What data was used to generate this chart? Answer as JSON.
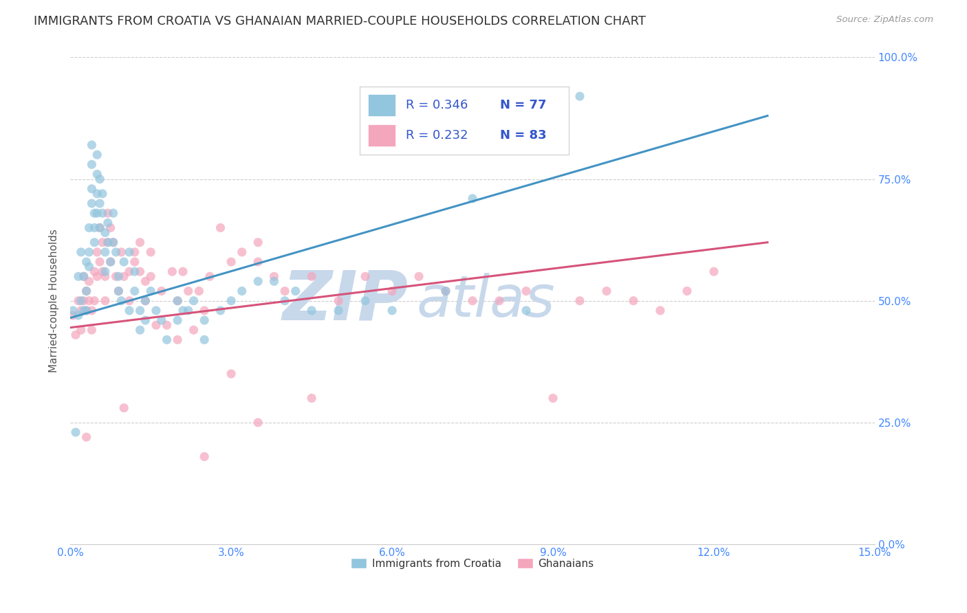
{
  "title": "IMMIGRANTS FROM CROATIA VS GHANAIAN MARRIED-COUPLE HOUSEHOLDS CORRELATION CHART",
  "source": "Source: ZipAtlas.com",
  "xlabel_ticks": [
    "0.0%",
    "",
    "",
    "",
    "",
    "",
    "",
    "",
    "",
    "",
    "3.0%",
    "",
    "",
    "",
    "",
    "",
    "",
    "",
    "",
    "",
    "6.0%",
    "",
    "",
    "",
    "",
    "",
    "",
    "",
    "",
    "",
    "9.0%",
    "",
    "",
    "",
    "",
    "",
    "",
    "",
    "",
    "",
    "12.0%",
    "",
    "",
    "",
    "",
    "",
    "",
    "",
    "",
    "",
    "15.0%"
  ],
  "xlabel_vals": [
    0,
    0.3,
    0.6,
    0.9,
    1.2,
    1.5,
    1.8,
    2.1,
    2.4,
    2.7,
    3.0,
    3.3,
    3.6,
    3.9,
    4.2,
    4.5,
    4.8,
    5.1,
    5.4,
    5.7,
    6.0,
    6.3,
    6.6,
    6.9,
    7.2,
    7.5,
    7.8,
    8.1,
    8.4,
    8.7,
    9.0,
    9.3,
    9.6,
    9.9,
    10.2,
    10.5,
    10.8,
    11.1,
    11.4,
    11.7,
    12.0,
    12.3,
    12.6,
    12.9,
    13.2,
    13.5,
    13.8,
    14.1,
    14.4,
    14.7,
    15.0
  ],
  "xlim": [
    0.0,
    15.0
  ],
  "ylim": [
    0.0,
    100.0
  ],
  "ylabel": "Married-couple Households",
  "ytick_vals": [
    0.0,
    25.0,
    50.0,
    75.0,
    100.0
  ],
  "ytick_labels": [
    "0.0%",
    "25.0%",
    "50.0%",
    "75.0%",
    "100.0%"
  ],
  "blue_R": 0.346,
  "blue_N": 77,
  "pink_R": 0.232,
  "pink_N": 83,
  "blue_color": "#92c5de",
  "blue_line_color": "#4393c3",
  "pink_color": "#f4a6bd",
  "pink_line_color": "#d6537a",
  "blue_scatter_x": [
    0.05,
    0.1,
    0.15,
    0.15,
    0.2,
    0.2,
    0.25,
    0.25,
    0.3,
    0.3,
    0.3,
    0.35,
    0.35,
    0.35,
    0.4,
    0.4,
    0.4,
    0.4,
    0.45,
    0.45,
    0.45,
    0.5,
    0.5,
    0.5,
    0.5,
    0.55,
    0.55,
    0.55,
    0.6,
    0.6,
    0.65,
    0.65,
    0.65,
    0.7,
    0.7,
    0.75,
    0.8,
    0.8,
    0.85,
    0.9,
    0.9,
    0.95,
    1.0,
    1.1,
    1.1,
    1.2,
    1.2,
    1.3,
    1.3,
    1.4,
    1.4,
    1.5,
    1.6,
    1.7,
    1.8,
    2.0,
    2.0,
    2.1,
    2.2,
    2.3,
    2.5,
    2.5,
    2.8,
    3.0,
    3.2,
    3.5,
    3.8,
    4.0,
    4.2,
    4.5,
    5.0,
    5.5,
    6.0,
    7.0,
    7.5,
    8.5,
    9.5
  ],
  "blue_scatter_y": [
    48,
    23,
    55,
    47,
    50,
    60,
    55,
    48,
    58,
    52,
    48,
    65,
    60,
    57,
    82,
    78,
    73,
    70,
    68,
    65,
    62,
    80,
    76,
    72,
    68,
    75,
    70,
    65,
    72,
    68,
    64,
    60,
    56,
    66,
    62,
    58,
    68,
    62,
    60,
    55,
    52,
    50,
    58,
    60,
    48,
    56,
    52,
    48,
    44,
    50,
    46,
    52,
    48,
    46,
    42,
    50,
    46,
    48,
    48,
    50,
    46,
    42,
    48,
    50,
    52,
    54,
    54,
    50,
    52,
    48,
    48,
    50,
    48,
    52,
    71,
    48,
    92
  ],
  "pink_scatter_x": [
    0.05,
    0.1,
    0.15,
    0.2,
    0.2,
    0.25,
    0.25,
    0.3,
    0.3,
    0.35,
    0.35,
    0.4,
    0.4,
    0.45,
    0.45,
    0.5,
    0.5,
    0.55,
    0.55,
    0.6,
    0.6,
    0.65,
    0.65,
    0.7,
    0.7,
    0.75,
    0.75,
    0.8,
    0.85,
    0.9,
    0.95,
    1.0,
    1.1,
    1.1,
    1.2,
    1.2,
    1.3,
    1.3,
    1.4,
    1.4,
    1.5,
    1.5,
    1.6,
    1.7,
    1.8,
    1.9,
    2.0,
    2.0,
    2.1,
    2.2,
    2.3,
    2.4,
    2.5,
    2.6,
    2.8,
    3.0,
    3.0,
    3.2,
    3.5,
    3.5,
    3.8,
    4.0,
    4.5,
    5.0,
    5.5,
    6.0,
    6.5,
    7.0,
    7.5,
    8.0,
    8.5,
    9.0,
    9.5,
    10.0,
    10.5,
    11.0,
    11.5,
    12.0,
    0.3,
    1.0,
    2.5,
    3.5,
    4.5
  ],
  "pink_scatter_y": [
    47,
    43,
    50,
    48,
    44,
    55,
    50,
    52,
    48,
    54,
    50,
    48,
    44,
    56,
    50,
    60,
    55,
    65,
    58,
    62,
    56,
    55,
    50,
    68,
    62,
    65,
    58,
    62,
    55,
    52,
    60,
    55,
    50,
    56,
    60,
    58,
    62,
    56,
    50,
    54,
    60,
    55,
    45,
    52,
    45,
    56,
    50,
    42,
    56,
    52,
    44,
    52,
    48,
    55,
    65,
    58,
    35,
    60,
    62,
    58,
    55,
    52,
    55,
    50,
    55,
    52,
    55,
    52,
    50,
    50,
    52,
    30,
    50,
    52,
    50,
    48,
    52,
    56,
    22,
    28,
    18,
    25,
    30
  ],
  "blue_trend_x": [
    0.0,
    13.0
  ],
  "blue_trend_y": [
    46.5,
    88.0
  ],
  "pink_trend_x": [
    0.0,
    13.0
  ],
  "pink_trend_y": [
    44.5,
    62.0
  ],
  "watermark_line1": "ZIP",
  "watermark_line2": "atlas",
  "watermark_color": "#c8d8eb",
  "background_color": "#ffffff",
  "grid_color": "#c8c8c8",
  "title_fontsize": 13,
  "axis_tick_fontsize": 11,
  "ylabel_fontsize": 11,
  "legend_color": "#3355cc",
  "tick_color": "#4488ff"
}
